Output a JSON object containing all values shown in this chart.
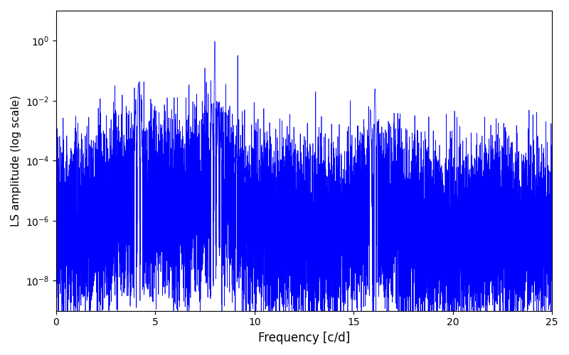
{
  "title": "",
  "xlabel": "Frequency [c/d]",
  "ylabel": "LS amplitude (log scale)",
  "line_color": "#0000ff",
  "background_color": "#ffffff",
  "xlim": [
    0,
    25
  ],
  "ylim_low": 1e-09,
  "ylim_high": 10,
  "yscale": "log",
  "figsize": [
    8.0,
    5.0
  ],
  "dpi": 100,
  "peak1_freq": 4.15,
  "peak1_amp": 0.04,
  "peak2_freq": 8.0,
  "peak2_amp": 0.95,
  "peak3_freq": 16.07,
  "peak3_amp": 0.025,
  "seed": 12345,
  "n_points": 8000
}
